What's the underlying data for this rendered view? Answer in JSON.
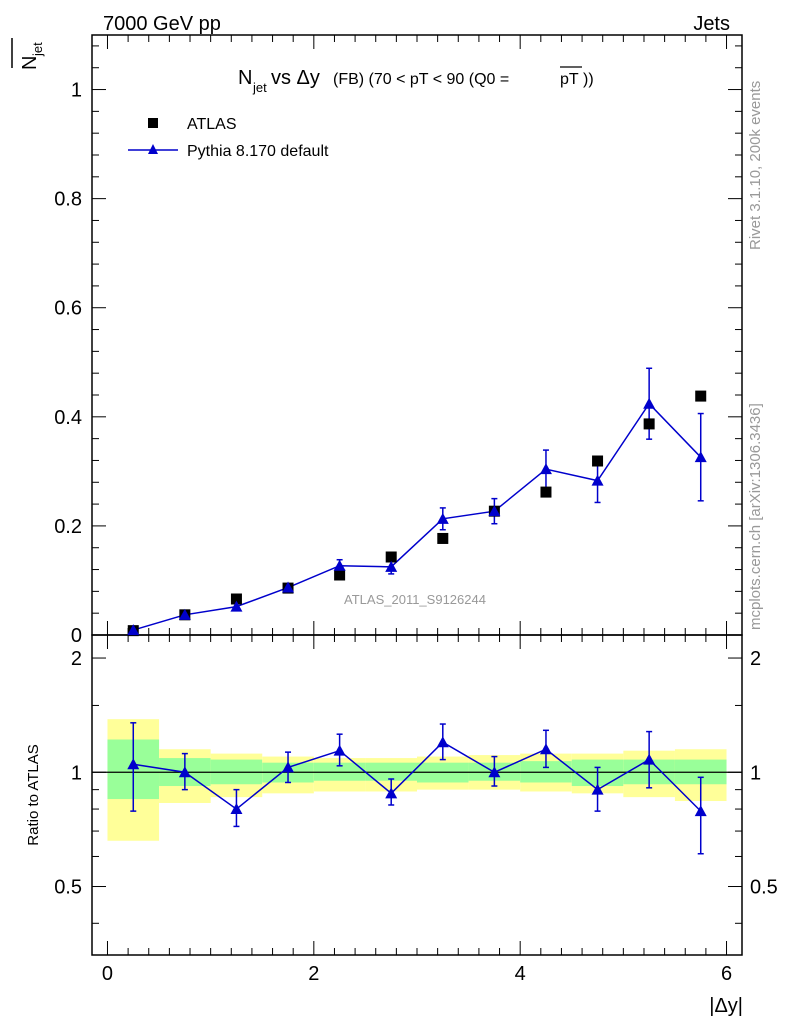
{
  "header": {
    "left": "7000 GeV pp",
    "right": "Jets"
  },
  "side_labels": {
    "rivet": "Rivet 3.1.10,  200k events",
    "mcplots": "mcplots.cern.ch [arXiv:1306.3436]"
  },
  "chart_data": {
    "type": "scatter",
    "title": {
      "main": "N",
      "sub": "jet",
      "rest": " vs Δy",
      "suffix": " (FB) (70 < pT <  90 (Q0 =",
      "pt": "pT",
      "close": "))"
    },
    "ylabel": {
      "main": "N",
      "sub": "jet"
    },
    "xlabel": "|Δy|",
    "watermark": "ATLAS_2011_S9126244",
    "xlim": [
      -0.15,
      6.15
    ],
    "ylim": [
      0,
      1.1
    ],
    "ratio_ylim": [
      0.33,
      2.3
    ],
    "ratio_ylabel": "Ratio to ATLAS",
    "x_ticks": [
      "0",
      "2",
      "4",
      "6"
    ],
    "y_ticks": [
      "0",
      "0.2",
      "0.4",
      "0.6",
      "0.8",
      "1"
    ],
    "ratio_ticks": [
      "0.5",
      "1",
      "2"
    ],
    "legend": {
      "data": "ATLAS",
      "mc": "Pythia 8.170 default"
    },
    "bins": [
      0,
      0.5,
      1,
      1.5,
      2,
      2.5,
      3,
      3.5,
      4,
      4.5,
      5,
      5.5,
      6
    ],
    "x": [
      0.25,
      0.75,
      1.25,
      1.75,
      2.25,
      2.75,
      3.25,
      3.75,
      4.25,
      4.75,
      5.25,
      5.75
    ],
    "series": [
      {
        "name": "ATLAS",
        "values": [
          0.008,
          0.037,
          0.066,
          0.086,
          0.11,
          0.143,
          0.177,
          0.227,
          0.262,
          0.319,
          0.387,
          0.438
        ]
      },
      {
        "name": "Pythia 8.170 default",
        "values": [
          0.009,
          0.037,
          0.052,
          0.087,
          0.127,
          0.125,
          0.213,
          0.227,
          0.304,
          0.283,
          0.424,
          0.326
        ],
        "err": [
          0.003,
          0.004,
          0.006,
          0.007,
          0.011,
          0.013,
          0.02,
          0.023,
          0.035,
          0.04,
          0.065,
          0.08
        ]
      }
    ],
    "ratio": {
      "values": [
        1.05,
        1.0,
        0.8,
        1.03,
        1.14,
        0.88,
        1.2,
        1.0,
        1.15,
        0.9,
        1.08,
        0.79
      ],
      "err_up": [
        0.3,
        0.12,
        0.1,
        0.1,
        0.12,
        0.08,
        0.14,
        0.1,
        0.14,
        0.13,
        0.2,
        0.18
      ],
      "err_dn": [
        0.26,
        0.1,
        0.08,
        0.09,
        0.1,
        0.06,
        0.12,
        0.08,
        0.12,
        0.11,
        0.17,
        0.18
      ],
      "band_inner": [
        [
          0.85,
          1.22
        ],
        [
          0.92,
          1.09
        ],
        [
          0.93,
          1.08
        ],
        [
          0.94,
          1.06
        ],
        [
          0.95,
          1.06
        ],
        [
          0.95,
          1.06
        ],
        [
          0.94,
          1.06
        ],
        [
          0.95,
          1.06
        ],
        [
          0.94,
          1.07
        ],
        [
          0.92,
          1.08
        ],
        [
          0.93,
          1.08
        ],
        [
          0.93,
          1.08
        ]
      ],
      "band_outer": [
        [
          0.66,
          1.38
        ],
        [
          0.83,
          1.15
        ],
        [
          0.86,
          1.12
        ],
        [
          0.88,
          1.1
        ],
        [
          0.89,
          1.09
        ],
        [
          0.89,
          1.09
        ],
        [
          0.9,
          1.1
        ],
        [
          0.9,
          1.11
        ],
        [
          0.89,
          1.12
        ],
        [
          0.88,
          1.12
        ],
        [
          0.86,
          1.14
        ],
        [
          0.84,
          1.15
        ]
      ]
    }
  }
}
